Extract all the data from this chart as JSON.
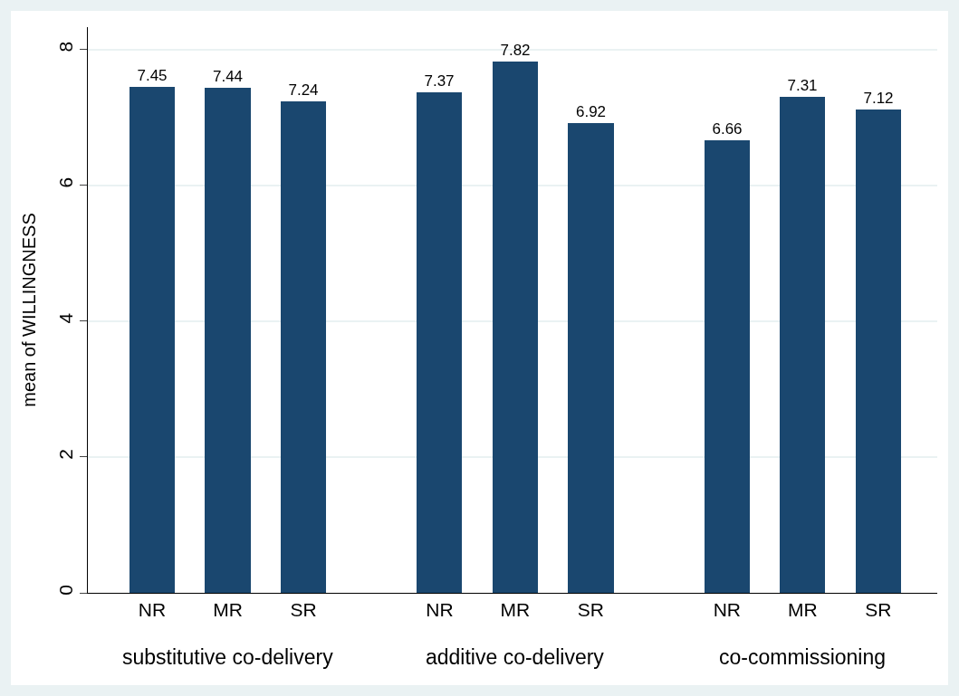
{
  "chart_data": {
    "type": "bar",
    "categories": [
      "NR",
      "MR",
      "SR",
      "NR",
      "MR",
      "SR",
      "NR",
      "MR",
      "SR"
    ],
    "values": [
      7.45,
      7.44,
      7.24,
      7.37,
      7.82,
      6.92,
      6.66,
      7.31,
      7.12
    ],
    "color": "#1a476f",
    "ylabel": "mean of WILLINGNESS",
    "ylim": [
      0,
      8.33
    ],
    "yticks": [
      0,
      2,
      4,
      6,
      8
    ],
    "grid": "y",
    "data_labels": true,
    "annotations": [
      "substitutive co-delivery",
      "additive co-delivery",
      "co-commissioning"
    ]
  }
}
